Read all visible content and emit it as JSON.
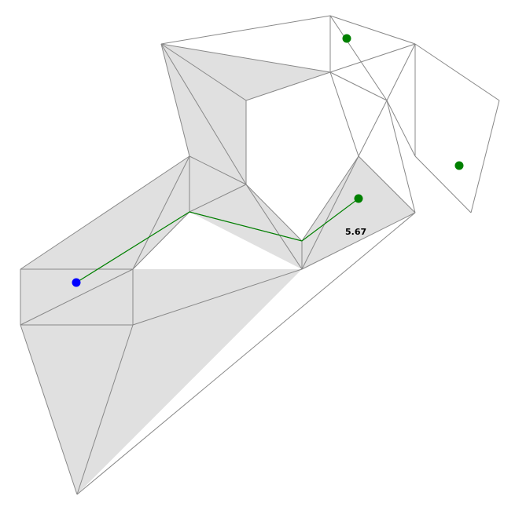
{
  "diagram": {
    "colors": {
      "edge": "#888888",
      "filled_triangle": "#e0e0e0",
      "path": "#008000",
      "start_point": "#0000ff",
      "goal_point": "#008000"
    },
    "distance_label": "5.67"
  }
}
